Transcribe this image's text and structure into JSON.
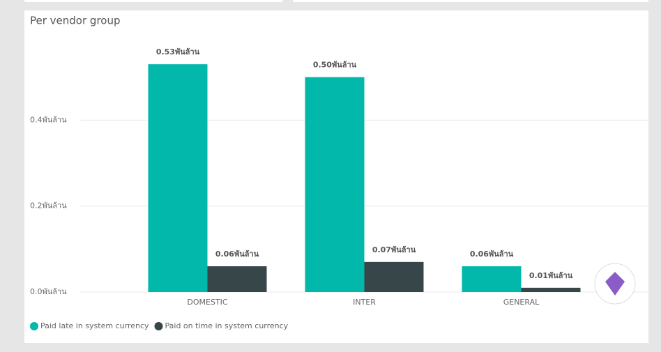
{
  "chart_data": {
    "type": "bar",
    "title": "Per vendor group",
    "categories": [
      "DOMESTIC",
      "INTER",
      "GENERAL"
    ],
    "series": [
      {
        "name": "Paid late in system currency",
        "color": "#01b8aa",
        "values": [
          0.53,
          0.5,
          0.06
        ],
        "value_labels": [
          "0.53พันล้าน",
          "0.50พันล้าน",
          "0.06พันล้าน"
        ]
      },
      {
        "name": "Paid on time in system currency",
        "color": "#374649",
        "values": [
          0.06,
          0.07,
          0.01
        ],
        "value_labels": [
          "0.06พันล้าน",
          "0.07พันล้าน",
          "0.01พันล้าน"
        ]
      }
    ],
    "ylim": [
      0,
      0.6
    ],
    "yticks": [
      {
        "value": 0,
        "label": "0.0พันล้าน"
      },
      {
        "value": 0.2,
        "label": "0.2พันล้าน"
      },
      {
        "value": 0.4,
        "label": "0.4พันล้าน"
      }
    ],
    "grid": true,
    "legend": "bottom-left"
  }
}
